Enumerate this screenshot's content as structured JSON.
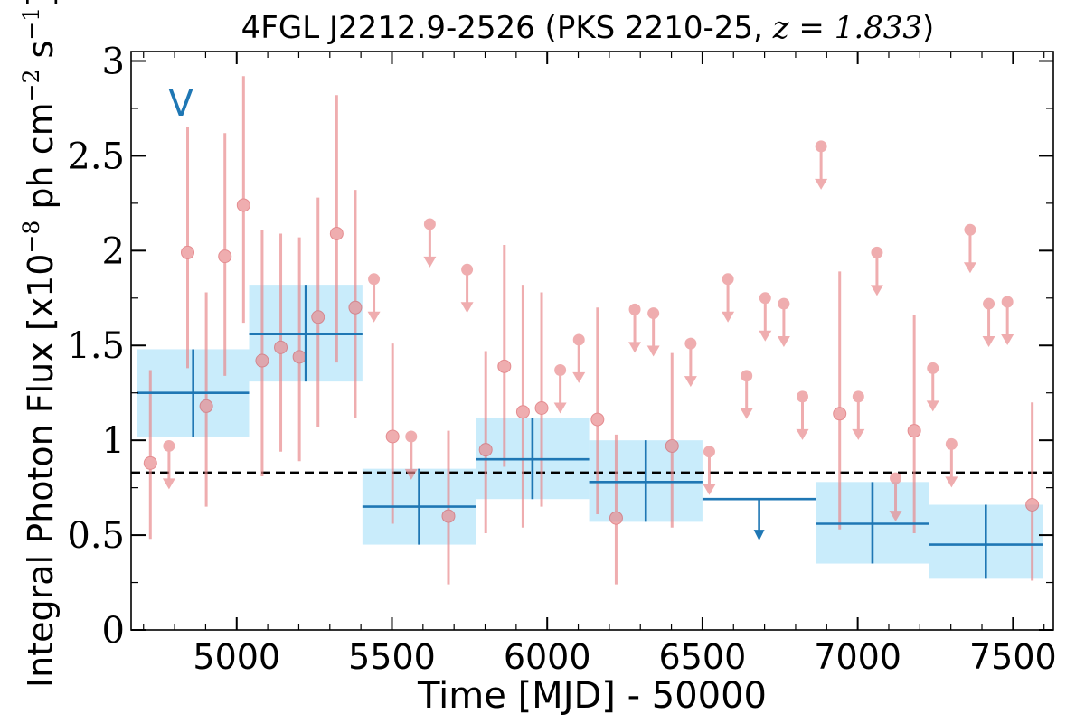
{
  "chart_data": {
    "type": "scatter",
    "title_main": "4FGL J2212.9-2526 (PKS 2210-25, ",
    "title_z": "z = 1.833",
    "title_close": ")",
    "xlabel": "Time [MJD] - 50000",
    "ylabel_main": "Integral Photon Flux [x10",
    "ylabel_exp1": "−8",
    "ylabel_mid": " ph cm",
    "ylabel_exp2": "−2",
    "ylabel_s": " s",
    "ylabel_exp3": "−1",
    "ylabel_close": "]",
    "annotation": "V",
    "xlim": [
      4660,
      7630
    ],
    "ylim": [
      0,
      3.05
    ],
    "xticks": [
      5000,
      5500,
      6000,
      6500,
      7000,
      7500
    ],
    "yticks": [
      0,
      0.5,
      1,
      1.5,
      2,
      2.5,
      3
    ],
    "ytick_labels": [
      "0",
      "0.5",
      "1",
      "1.5",
      "2",
      "2.5",
      "3"
    ],
    "mean_level": 0.83,
    "colors": {
      "points": "#e8878a",
      "bins": "#1f77b4",
      "band": "#c9ecfb",
      "mean": "#000000"
    },
    "short_bins": [
      {
        "x": 4722,
        "y": 0.88,
        "lo": 0.48,
        "hi": 1.37
      },
      {
        "x": 4782,
        "ul": 0.97
      },
      {
        "x": 4842,
        "y": 1.99,
        "lo": 1.38,
        "hi": 2.65
      },
      {
        "x": 4902,
        "y": 1.18,
        "lo": 0.65,
        "hi": 1.78
      },
      {
        "x": 4962,
        "y": 1.97,
        "lo": 1.34,
        "hi": 2.62
      },
      {
        "x": 5022,
        "y": 2.24,
        "lo": 1.62,
        "hi": 2.92
      },
      {
        "x": 5082,
        "y": 1.42,
        "lo": 0.81,
        "hi": 2.11
      },
      {
        "x": 5142,
        "y": 1.49,
        "lo": 0.94,
        "hi": 2.09
      },
      {
        "x": 5202,
        "y": 1.44,
        "lo": 0.89,
        "hi": 2.07
      },
      {
        "x": 5262,
        "y": 1.65,
        "lo": 1.07,
        "hi": 2.28
      },
      {
        "x": 5322,
        "y": 2.09,
        "lo": 1.41,
        "hi": 2.82
      },
      {
        "x": 5382,
        "y": 1.7,
        "lo": 1.12,
        "hi": 2.32
      },
      {
        "x": 5442,
        "ul": 1.85
      },
      {
        "x": 5502,
        "y": 1.02,
        "lo": 0.56,
        "hi": 1.51
      },
      {
        "x": 5562,
        "ul": 1.02
      },
      {
        "x": 5622,
        "ul": 2.14
      },
      {
        "x": 5682,
        "y": 0.6,
        "lo": 0.24,
        "hi": 1.05
      },
      {
        "x": 5742,
        "ul": 1.9
      },
      {
        "x": 5802,
        "y": 0.95,
        "lo": 0.51,
        "hi": 1.47
      },
      {
        "x": 5862,
        "y": 1.39,
        "lo": 0.86,
        "hi": 2.03
      },
      {
        "x": 5922,
        "y": 1.15,
        "lo": 0.54,
        "hi": 1.82
      },
      {
        "x": 5982,
        "y": 1.17,
        "lo": 0.65,
        "hi": 1.78
      },
      {
        "x": 6042,
        "ul": 1.37
      },
      {
        "x": 6102,
        "ul": 1.53
      },
      {
        "x": 6162,
        "y": 1.11,
        "lo": 0.61,
        "hi": 1.7
      },
      {
        "x": 6222,
        "y": 0.59,
        "lo": 0.24,
        "hi": 1.03
      },
      {
        "x": 6282,
        "ul": 1.69
      },
      {
        "x": 6342,
        "ul": 1.67
      },
      {
        "x": 6402,
        "y": 0.97,
        "lo": 0.54,
        "hi": 1.46
      },
      {
        "x": 6462,
        "ul": 1.51
      },
      {
        "x": 6522,
        "ul": 0.94
      },
      {
        "x": 6582,
        "ul": 1.85
      },
      {
        "x": 6642,
        "ul": 1.34
      },
      {
        "x": 6702,
        "ul": 1.75
      },
      {
        "x": 6762,
        "ul": 1.72
      },
      {
        "x": 6822,
        "ul": 1.23
      },
      {
        "x": 6882,
        "ul": 2.55
      },
      {
        "x": 6942,
        "y": 1.14,
        "lo": 0.53,
        "hi": 1.89
      },
      {
        "x": 7002,
        "ul": 1.23
      },
      {
        "x": 7062,
        "ul": 1.99
      },
      {
        "x": 7122,
        "ul": 0.8
      },
      {
        "x": 7182,
        "y": 1.05,
        "lo": 0.51,
        "hi": 1.66
      },
      {
        "x": 7242,
        "ul": 1.38
      },
      {
        "x": 7302,
        "ul": 0.98
      },
      {
        "x": 7362,
        "ul": 2.11
      },
      {
        "x": 7422,
        "ul": 1.72
      },
      {
        "x": 7482,
        "ul": 1.73
      },
      {
        "x": 7562,
        "y": 0.66,
        "lo": 0.26,
        "hi": 1.2
      }
    ],
    "long_bins": [
      {
        "x0": 4680,
        "x1": 5040,
        "y": 1.25,
        "lo": 1.02,
        "hi": 1.48
      },
      {
        "x0": 5040,
        "x1": 5405,
        "y": 1.56,
        "lo": 1.31,
        "hi": 1.82
      },
      {
        "x0": 5405,
        "x1": 5770,
        "y": 0.65,
        "lo": 0.45,
        "hi": 0.85
      },
      {
        "x0": 5770,
        "x1": 6135,
        "y": 0.9,
        "lo": 0.69,
        "hi": 1.12
      },
      {
        "x0": 6135,
        "x1": 6500,
        "y": 0.78,
        "lo": 0.57,
        "hi": 1.0
      },
      {
        "x0": 6500,
        "x1": 6865,
        "ul": 0.69
      },
      {
        "x0": 6865,
        "x1": 7230,
        "y": 0.56,
        "lo": 0.35,
        "hi": 0.78
      },
      {
        "x0": 7230,
        "x1": 7595,
        "y": 0.45,
        "lo": 0.27,
        "hi": 0.66
      }
    ]
  }
}
